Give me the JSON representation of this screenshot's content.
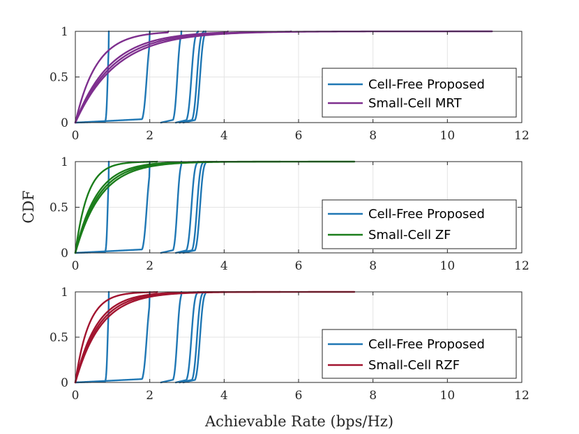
{
  "figure": {
    "ylabel": "CDF",
    "xlabel": "Achievable Rate (bps/Hz)"
  },
  "colors": {
    "cell_free": "#1f77b4",
    "mrt": "#7e2f8e",
    "zf": "#1b7d1b",
    "rzf": "#a2142f"
  },
  "chart_data": [
    {
      "type": "line",
      "title": "",
      "xlabel": "",
      "ylabel": "",
      "xlim": [
        0,
        12
      ],
      "ylim": [
        0,
        1
      ],
      "x_ticks": [
        "0",
        "2",
        "4",
        "6",
        "8",
        "10",
        "12"
      ],
      "y_ticks": [
        "0",
        "0.5",
        "1"
      ],
      "grid": true,
      "legend_position": "bottom-right",
      "series": [
        {
          "name": "Cell-Free Proposed",
          "group": "cell_free",
          "curve": "step",
          "center": 0.87,
          "spread": 0.03,
          "tail": 0.05,
          "min": 0.0,
          "max": 0.9
        },
        {
          "name": "Cell-Free Proposed",
          "group": "cell_free",
          "curve": "step",
          "center": 1.92,
          "spread": 0.07,
          "tail": 0.2,
          "min": 0.0,
          "max": 2.0
        },
        {
          "name": "Cell-Free Proposed",
          "group": "cell_free",
          "curve": "step",
          "center": 2.74,
          "spread": 0.06,
          "tail": 0.2,
          "min": 2.3,
          "max": 2.85
        },
        {
          "name": "Cell-Free Proposed",
          "group": "cell_free",
          "curve": "step",
          "center": 3.12,
          "spread": 0.07,
          "tail": 0.2,
          "min": 2.7,
          "max": 3.3
        },
        {
          "name": "Cell-Free Proposed",
          "group": "cell_free",
          "curve": "step",
          "center": 3.27,
          "spread": 0.07,
          "tail": 0.2,
          "min": 2.8,
          "max": 3.45
        },
        {
          "name": "Cell-Free Proposed",
          "group": "cell_free",
          "curve": "step",
          "center": 3.35,
          "spread": 0.07,
          "tail": 0.2,
          "min": 2.9,
          "max": 3.5
        },
        {
          "name": "Small-Cell MRT",
          "group": "mrt",
          "curve": "exp",
          "scale": 0.95,
          "max": 2.5
        },
        {
          "name": "Small-Cell MRT",
          "group": "mrt",
          "curve": "exp",
          "scale": 1.55,
          "max": 4.1
        },
        {
          "name": "Small-Cell MRT",
          "group": "mrt",
          "curve": "exp",
          "scale": 1.7,
          "max": 5.8
        },
        {
          "name": "Small-Cell MRT",
          "group": "mrt",
          "curve": "exp",
          "scale": 1.85,
          "max": 11.2
        }
      ],
      "legend": [
        {
          "label": "Cell-Free Proposed",
          "group": "cell_free"
        },
        {
          "label": "Small-Cell MRT",
          "group": "mrt"
        }
      ]
    },
    {
      "type": "line",
      "title": "",
      "xlabel": "",
      "ylabel": "CDF",
      "xlim": [
        0,
        12
      ],
      "ylim": [
        0,
        1
      ],
      "x_ticks": [
        "0",
        "2",
        "4",
        "6",
        "8",
        "10",
        "12"
      ],
      "y_ticks": [
        "0",
        "0.5",
        "1"
      ],
      "grid": true,
      "legend_position": "bottom-right",
      "series": [
        {
          "name": "Cell-Free Proposed",
          "group": "cell_free",
          "curve": "step",
          "center": 0.87,
          "spread": 0.03,
          "tail": 0.05,
          "min": 0.0,
          "max": 0.9
        },
        {
          "name": "Cell-Free Proposed",
          "group": "cell_free",
          "curve": "step",
          "center": 1.92,
          "spread": 0.07,
          "tail": 0.2,
          "min": 0.0,
          "max": 2.0
        },
        {
          "name": "Cell-Free Proposed",
          "group": "cell_free",
          "curve": "step",
          "center": 2.74,
          "spread": 0.06,
          "tail": 0.2,
          "min": 2.3,
          "max": 2.85
        },
        {
          "name": "Cell-Free Proposed",
          "group": "cell_free",
          "curve": "step",
          "center": 3.12,
          "spread": 0.07,
          "tail": 0.2,
          "min": 2.7,
          "max": 3.3
        },
        {
          "name": "Cell-Free Proposed",
          "group": "cell_free",
          "curve": "step",
          "center": 3.27,
          "spread": 0.07,
          "tail": 0.2,
          "min": 2.8,
          "max": 3.45
        },
        {
          "name": "Cell-Free Proposed",
          "group": "cell_free",
          "curve": "step",
          "center": 3.35,
          "spread": 0.07,
          "tail": 0.2,
          "min": 2.9,
          "max": 3.5
        },
        {
          "name": "Small-Cell ZF",
          "group": "zf",
          "curve": "exp",
          "scale": 0.55,
          "max": 2.2
        },
        {
          "name": "Small-Cell ZF",
          "group": "zf",
          "curve": "exp",
          "scale": 0.95,
          "max": 3.8
        },
        {
          "name": "Small-Cell ZF",
          "group": "zf",
          "curve": "exp",
          "scale": 1.05,
          "max": 5.5
        },
        {
          "name": "Small-Cell ZF",
          "group": "zf",
          "curve": "exp",
          "scale": 1.15,
          "max": 7.5
        }
      ],
      "legend": [
        {
          "label": "Cell-Free Proposed",
          "group": "cell_free"
        },
        {
          "label": "Small-Cell ZF",
          "group": "zf"
        }
      ]
    },
    {
      "type": "line",
      "title": "",
      "xlabel": "Achievable Rate (bps/Hz)",
      "ylabel": "",
      "xlim": [
        0,
        12
      ],
      "ylim": [
        0,
        1
      ],
      "x_ticks": [
        "0",
        "2",
        "4",
        "6",
        "8",
        "10",
        "12"
      ],
      "y_ticks": [
        "0",
        "0.5",
        "1"
      ],
      "grid": true,
      "legend_position": "bottom-right",
      "series": [
        {
          "name": "Cell-Free Proposed",
          "group": "cell_free",
          "curve": "step",
          "center": 0.87,
          "spread": 0.03,
          "tail": 0.05,
          "min": 0.0,
          "max": 0.9
        },
        {
          "name": "Cell-Free Proposed",
          "group": "cell_free",
          "curve": "step",
          "center": 1.92,
          "spread": 0.07,
          "tail": 0.2,
          "min": 0.0,
          "max": 2.0
        },
        {
          "name": "Cell-Free Proposed",
          "group": "cell_free",
          "curve": "step",
          "center": 2.74,
          "spread": 0.06,
          "tail": 0.2,
          "min": 2.3,
          "max": 2.85
        },
        {
          "name": "Cell-Free Proposed",
          "group": "cell_free",
          "curve": "step",
          "center": 3.12,
          "spread": 0.07,
          "tail": 0.2,
          "min": 2.7,
          "max": 3.3
        },
        {
          "name": "Cell-Free Proposed",
          "group": "cell_free",
          "curve": "step",
          "center": 3.27,
          "spread": 0.07,
          "tail": 0.2,
          "min": 2.8,
          "max": 3.45
        },
        {
          "name": "Cell-Free Proposed",
          "group": "cell_free",
          "curve": "step",
          "center": 3.35,
          "spread": 0.07,
          "tail": 0.2,
          "min": 2.9,
          "max": 3.5
        },
        {
          "name": "Small-Cell RZF",
          "group": "rzf",
          "curve": "exp",
          "scale": 0.6,
          "max": 2.2
        },
        {
          "name": "Small-Cell RZF",
          "group": "rzf",
          "curve": "exp",
          "scale": 0.95,
          "max": 4.0
        },
        {
          "name": "Small-Cell RZF",
          "group": "rzf",
          "curve": "exp",
          "scale": 1.05,
          "max": 5.5
        },
        {
          "name": "Small-Cell RZF",
          "group": "rzf",
          "curve": "exp",
          "scale": 1.15,
          "max": 7.5
        }
      ],
      "legend": [
        {
          "label": "Cell-Free Proposed",
          "group": "cell_free"
        },
        {
          "label": "Small-Cell RZF",
          "group": "rzf"
        }
      ]
    }
  ]
}
